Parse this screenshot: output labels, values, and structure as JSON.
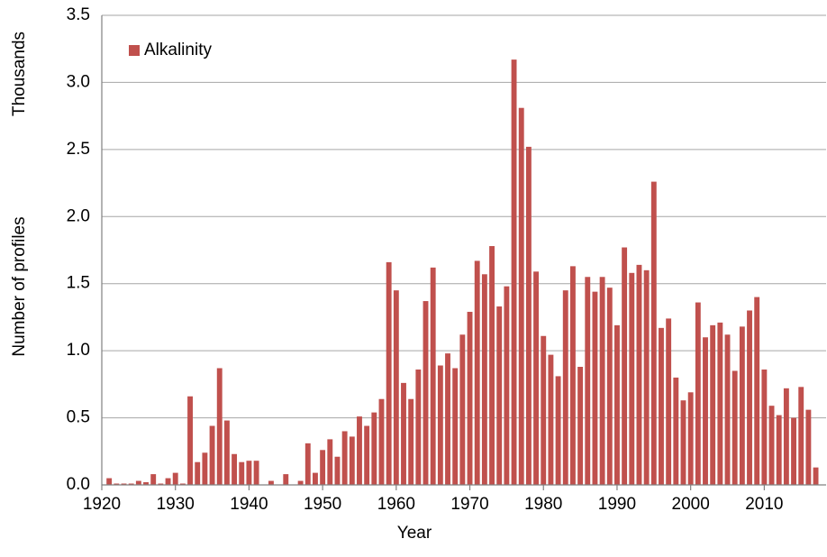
{
  "chart_data": {
    "type": "bar",
    "x_label": "Year",
    "y_label": "Number of profiles",
    "y_unit_label": "Thousands",
    "x": [
      1921,
      1922,
      1923,
      1924,
      1925,
      1926,
      1927,
      1928,
      1929,
      1930,
      1931,
      1932,
      1933,
      1934,
      1935,
      1936,
      1937,
      1938,
      1939,
      1940,
      1941,
      1942,
      1943,
      1944,
      1945,
      1946,
      1947,
      1948,
      1949,
      1950,
      1951,
      1952,
      1953,
      1954,
      1955,
      1956,
      1957,
      1958,
      1959,
      1960,
      1961,
      1962,
      1963,
      1964,
      1965,
      1966,
      1967,
      1968,
      1969,
      1970,
      1971,
      1972,
      1973,
      1974,
      1975,
      1976,
      1977,
      1978,
      1979,
      1980,
      1981,
      1982,
      1983,
      1984,
      1985,
      1986,
      1987,
      1988,
      1989,
      1990,
      1991,
      1992,
      1993,
      1994,
      1995,
      1996,
      1997,
      1998,
      1999,
      2000,
      2001,
      2002,
      2003,
      2004,
      2005,
      2006,
      2007,
      2008,
      2009,
      2010,
      2011,
      2012,
      2013,
      2014,
      2015,
      2016,
      2017
    ],
    "series": [
      {
        "name": "Alkalinity",
        "color": "#c0504d",
        "values": [
          0.05,
          0.01,
          0.01,
          0.01,
          0.03,
          0.02,
          0.08,
          0.01,
          0.05,
          0.09,
          0.01,
          0.66,
          0.17,
          0.24,
          0.44,
          0.87,
          0.48,
          0.23,
          0.17,
          0.18,
          0.18,
          0,
          0.03,
          0,
          0.08,
          0,
          0.03,
          0.31,
          0.09,
          0.26,
          0.34,
          0.21,
          0.4,
          0.36,
          0.51,
          0.44,
          0.54,
          0.64,
          1.66,
          1.45,
          0.76,
          0.64,
          0.86,
          1.37,
          1.62,
          0.89,
          0.98,
          0.87,
          1.12,
          1.29,
          1.67,
          1.57,
          1.78,
          1.33,
          1.48,
          3.17,
          2.81,
          2.52,
          1.59,
          1.11,
          0.97,
          0.81,
          1.45,
          1.63,
          0.88,
          1.55,
          1.44,
          1.55,
          1.47,
          1.19,
          1.77,
          1.58,
          1.64,
          1.6,
          2.26,
          1.17,
          1.24,
          0.8,
          0.63,
          0.69,
          1.36,
          1.1,
          1.19,
          1.21,
          1.12,
          0.85,
          1.18,
          1.3,
          1.4,
          0.86,
          0.59,
          0.52,
          0.72,
          0.5,
          0.73,
          0.56,
          0.13
        ]
      }
    ],
    "xlim": [
      1920,
      2018.4
    ],
    "xticks": [
      1920,
      1930,
      1940,
      1950,
      1960,
      1970,
      1980,
      1990,
      2000,
      2010
    ],
    "ylim": [
      0,
      3.5
    ],
    "yticks": [
      {
        "value": 0,
        "label": "0.0"
      },
      {
        "value": 0.5,
        "label": "0.5"
      },
      {
        "value": 1,
        "label": "1.0"
      },
      {
        "value": 1.5,
        "label": "1.5"
      },
      {
        "value": 2,
        "label": "2.0"
      },
      {
        "value": 2.5,
        "label": "2.5"
      },
      {
        "value": 3,
        "label": "3.0"
      },
      {
        "value": 3.5,
        "label": "3.5"
      }
    ],
    "grid": true,
    "legend": "upper left"
  }
}
